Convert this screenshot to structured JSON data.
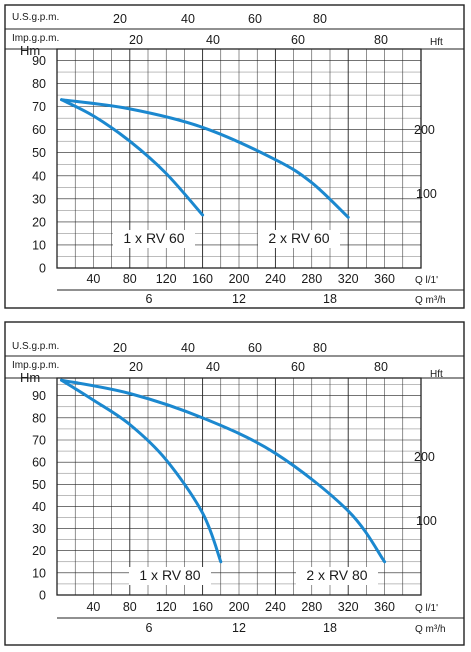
{
  "colors": {
    "curve": "#1b88cf",
    "grid": "#222222",
    "frame": "#222222"
  },
  "chart_data": [
    {
      "type": "line",
      "axes": {
        "us_gpm_label": "U.S.g.p.m.",
        "us_gpm_ticks": [
          "20",
          "40",
          "60",
          "80"
        ],
        "imp_gpm_label": "Imp.g.p.m.",
        "imp_gpm_ticks": [
          "20",
          "40",
          "60",
          "80"
        ],
        "y_left_label": "Hm",
        "y_left_ticks": [
          "0",
          "10",
          "20",
          "30",
          "40",
          "50",
          "60",
          "70",
          "80",
          "90"
        ],
        "y_right_label": "Hft",
        "y_right_ticks": [
          "100",
          "200"
        ],
        "x_flow_label": "Q l/1'",
        "x_flow_ticks": [
          "40",
          "80",
          "120",
          "160",
          "200",
          "240",
          "280",
          "320",
          "360"
        ],
        "x_m3h_label": "Q m³/h",
        "x_m3h_ticks": [
          "6",
          "12",
          "18"
        ]
      },
      "xlim": [
        0,
        400
      ],
      "ylim": [
        0,
        95
      ],
      "grid": true,
      "series": [
        {
          "name": "1 x RV 60",
          "x": [
            5,
            40,
            80,
            120,
            160
          ],
          "y": [
            73,
            66,
            55,
            41,
            23
          ]
        },
        {
          "name": "2 x RV 60",
          "x": [
            5,
            80,
            160,
            240,
            280,
            320
          ],
          "y": [
            73,
            69,
            61,
            47,
            37,
            22
          ]
        }
      ]
    },
    {
      "type": "line",
      "axes": {
        "us_gpm_label": "U.S.g.p.m.",
        "us_gpm_ticks": [
          "20",
          "40",
          "60",
          "80"
        ],
        "imp_gpm_label": "Imp.g.p.m.",
        "imp_gpm_ticks": [
          "20",
          "40",
          "60",
          "80"
        ],
        "y_left_label": "Hm",
        "y_left_ticks": [
          "0",
          "10",
          "20",
          "30",
          "40",
          "50",
          "60",
          "70",
          "80",
          "90"
        ],
        "y_right_label": "Hft",
        "y_right_ticks": [
          "100",
          "200"
        ],
        "x_flow_label": "Q l/1'",
        "x_flow_ticks": [
          "40",
          "80",
          "120",
          "160",
          "200",
          "240",
          "280",
          "320",
          "360"
        ],
        "x_m3h_label": "Q m³/h",
        "x_m3h_ticks": [
          "6",
          "12",
          "18"
        ]
      },
      "xlim": [
        0,
        400
      ],
      "ylim": [
        0,
        98
      ],
      "grid": true,
      "series": [
        {
          "name": "1 x RV 80",
          "x": [
            5,
            40,
            80,
            120,
            160,
            180
          ],
          "y": [
            97,
            88,
            77,
            61,
            37,
            15
          ]
        },
        {
          "name": "2 x RV 80",
          "x": [
            5,
            80,
            160,
            240,
            320,
            360
          ],
          "y": [
            97,
            91,
            80,
            64,
            38,
            15
          ]
        }
      ]
    }
  ]
}
